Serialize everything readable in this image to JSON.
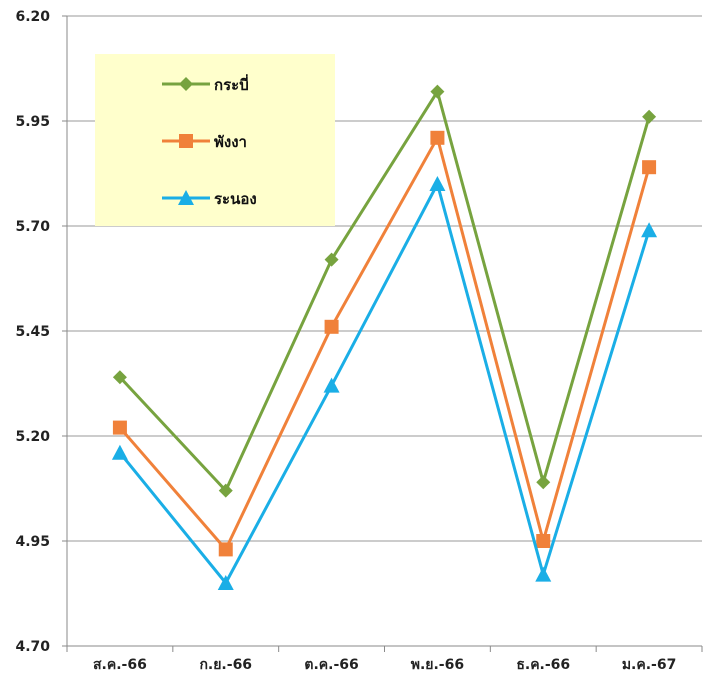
{
  "chart_data": {
    "type": "line",
    "categories": [
      "ส.ค.-66",
      "ก.ย.-66",
      "ต.ค.-66",
      "พ.ย.-66",
      "ธ.ค.-66",
      "ม.ค.-67"
    ],
    "series": [
      {
        "name": "กระบี่",
        "values": [
          5.34,
          5.07,
          5.62,
          6.02,
          5.09,
          5.96
        ],
        "color": "#77A33F",
        "marker": "diamond"
      },
      {
        "name": "พังงา",
        "values": [
          5.22,
          4.93,
          5.46,
          5.91,
          4.95,
          5.84
        ],
        "color": "#F0813A",
        "marker": "square"
      },
      {
        "name": "ระนอง",
        "values": [
          5.16,
          4.85,
          5.32,
          5.8,
          4.87,
          5.69
        ],
        "color": "#1AAEE6",
        "marker": "triangle"
      }
    ],
    "yticks": [
      "6.20",
      "5.95",
      "5.70",
      "5.45",
      "5.20",
      "4.95",
      "4.70"
    ],
    "ylim": [
      4.7,
      6.2
    ],
    "grid": true,
    "legend_position": "top-left",
    "legend_background": "#FFFFCC",
    "title": "",
    "xlabel": "",
    "ylabel": ""
  }
}
